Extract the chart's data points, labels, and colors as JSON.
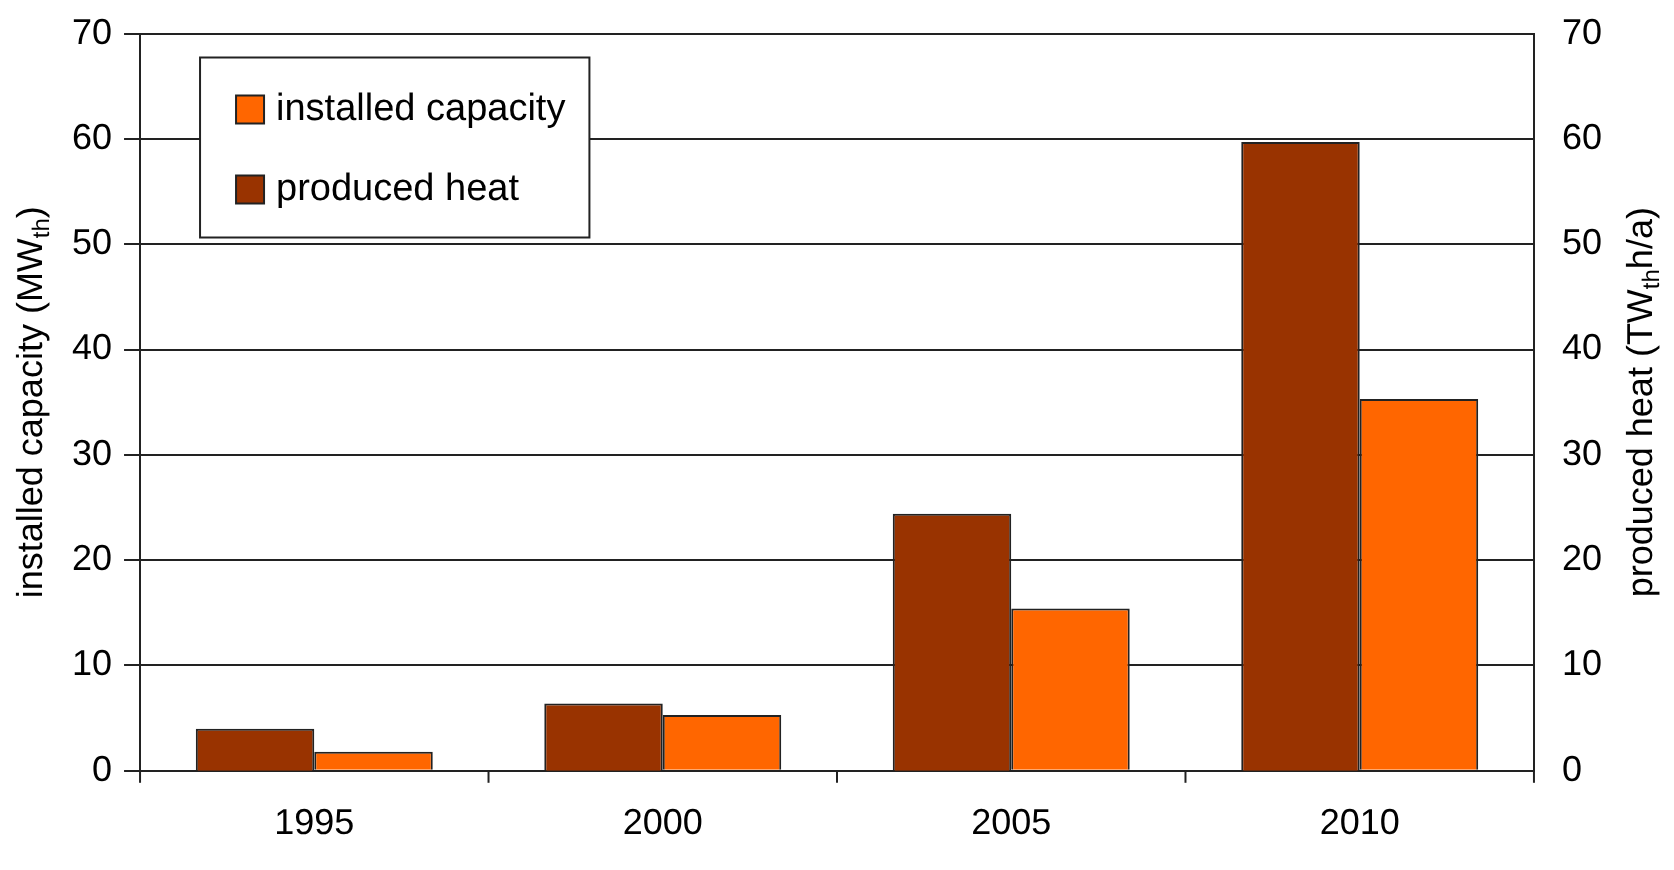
{
  "chart_data": {
    "type": "bar",
    "categories": [
      "1995",
      "2000",
      "2005",
      "2010"
    ],
    "series": [
      {
        "name": "produced heat",
        "color": "#993300",
        "values": [
          4.0,
          6.4,
          24.4,
          59.7
        ],
        "axis": "y2"
      },
      {
        "name": "installed capacity",
        "color": "#ff6600",
        "values": [
          1.8,
          5.3,
          15.4,
          35.3
        ]
      }
    ],
    "ylabel": "installed capacity (MW$_{th}$)",
    "y2label": "produced heat (TW$_{th}$h/a)",
    "ylim": [
      0,
      70
    ],
    "yticks": [
      0,
      10,
      20,
      30,
      40,
      50,
      60,
      70
    ],
    "y2lim": [
      0,
      70
    ],
    "y2ticks": [
      0,
      10,
      20,
      30,
      40,
      50,
      60,
      70
    ],
    "grid": "y",
    "legend": "top left"
  }
}
